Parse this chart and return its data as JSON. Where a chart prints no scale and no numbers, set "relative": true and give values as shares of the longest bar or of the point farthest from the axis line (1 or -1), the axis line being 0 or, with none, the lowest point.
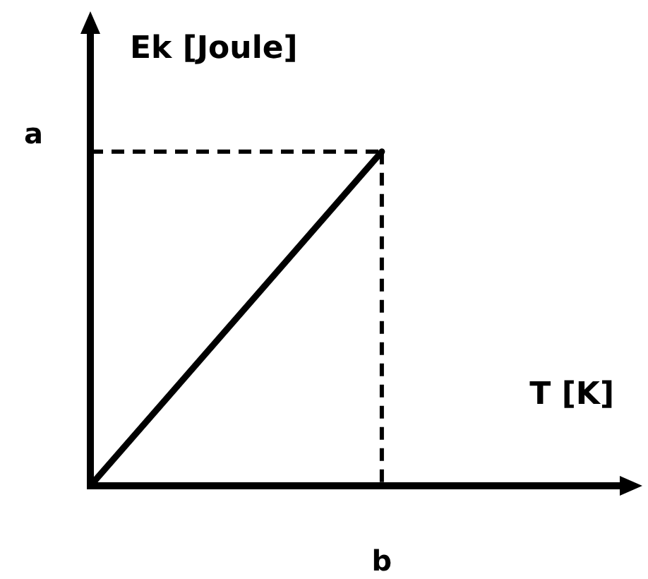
{
  "chart_data": {
    "type": "line",
    "xlabel": "T [K]",
    "ylabel": "Ek [Joule]",
    "relative": true,
    "categories": [
      null,
      null
    ],
    "series": [
      {
        "color": "#000000",
        "values": [
          0,
          1
        ]
      }
    ],
    "ref_lines": [
      {
        "axis": "y",
        "value": 1,
        "label": "a",
        "color": "#000000",
        "line_style": "dashed"
      }
    ],
    "annotations": [
      "b"
    ]
  }
}
